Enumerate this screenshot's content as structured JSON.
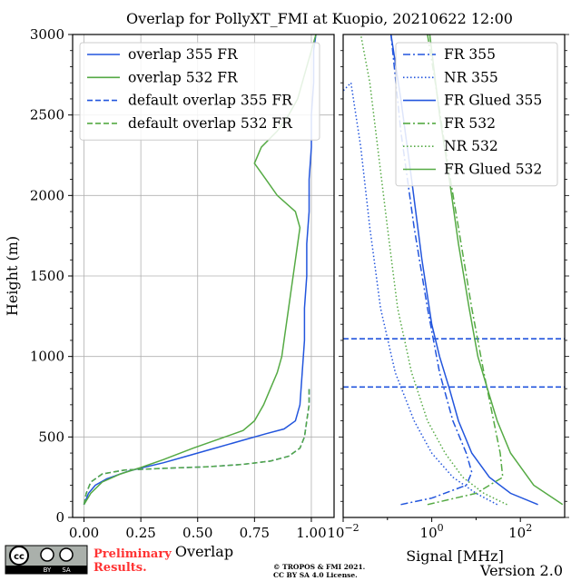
{
  "title": "Overlap for PollyXT_FMI at Kuopio, 20210622 12:00",
  "ylabel": "Height (m)",
  "footer": {
    "preliminary_line1": "Preliminary",
    "preliminary_line2": "Results.",
    "copyright_line1": "© TROPOS & FMI 2021.",
    "copyright_line2": "CC BY SA 4.0 License.",
    "version": "Version 2.0",
    "license_badge": "cc-by-sa-icon"
  },
  "colors": {
    "blue": "#2255dd",
    "green": "#55aa44",
    "grid": "#b0b0b0"
  },
  "chart_data": [
    {
      "type": "line",
      "xlabel": "Overlap",
      "ylabel": "Height (m)",
      "xlim": [
        -0.05,
        1.1
      ],
      "ylim": [
        0,
        3000
      ],
      "xticks": [
        "0.00",
        "0.25",
        "0.50",
        "0.75",
        "1.00"
      ],
      "yticks": [
        "0",
        "500",
        "1000",
        "1500",
        "2000",
        "2500",
        "3000"
      ],
      "grid": true,
      "legend": "top-left",
      "series": [
        {
          "name": "overlap 355 FR",
          "color": "blue",
          "style": "solid",
          "points": [
            [
              0.0,
              80
            ],
            [
              0.02,
              150
            ],
            [
              0.05,
              200
            ],
            [
              0.1,
              240
            ],
            [
              0.2,
              290
            ],
            [
              0.35,
              340
            ],
            [
              0.45,
              380
            ],
            [
              0.55,
              420
            ],
            [
              0.7,
              480
            ],
            [
              0.8,
              520
            ],
            [
              0.88,
              550
            ],
            [
              0.93,
              600
            ],
            [
              0.95,
              700
            ],
            [
              0.96,
              900
            ],
            [
              0.97,
              1100
            ],
            [
              0.97,
              1300
            ],
            [
              0.98,
              1500
            ],
            [
              0.98,
              1700
            ],
            [
              0.99,
              1900
            ],
            [
              0.99,
              2100
            ],
            [
              1.0,
              2300
            ],
            [
              1.0,
              2500
            ],
            [
              1.01,
              2700
            ],
            [
              1.01,
              2900
            ],
            [
              1.02,
              3000
            ]
          ]
        },
        {
          "name": "overlap 532 FR",
          "color": "green",
          "style": "solid",
          "points": [
            [
              0.0,
              80
            ],
            [
              0.03,
              150
            ],
            [
              0.08,
              220
            ],
            [
              0.16,
              270
            ],
            [
              0.25,
              310
            ],
            [
              0.35,
              360
            ],
            [
              0.48,
              430
            ],
            [
              0.6,
              490
            ],
            [
              0.7,
              540
            ],
            [
              0.75,
              600
            ],
            [
              0.79,
              700
            ],
            [
              0.82,
              800
            ],
            [
              0.85,
              900
            ],
            [
              0.87,
              1000
            ],
            [
              0.88,
              1100
            ],
            [
              0.89,
              1200
            ],
            [
              0.9,
              1300
            ],
            [
              0.91,
              1400
            ],
            [
              0.92,
              1500
            ],
            [
              0.93,
              1600
            ],
            [
              0.94,
              1700
            ],
            [
              0.95,
              1800
            ],
            [
              0.93,
              1900
            ],
            [
              0.85,
              2000
            ],
            [
              0.8,
              2100
            ],
            [
              0.75,
              2200
            ],
            [
              0.78,
              2300
            ],
            [
              0.85,
              2400
            ],
            [
              0.9,
              2500
            ],
            [
              0.94,
              2600
            ],
            [
              0.96,
              2700
            ],
            [
              0.98,
              2800
            ],
            [
              1.0,
              2900
            ],
            [
              1.02,
              3000
            ]
          ]
        },
        {
          "name": "default overlap 355 FR",
          "color": "blue",
          "style": "dashed",
          "points": [
            [
              0.0,
              80
            ],
            [
              0.01,
              150
            ],
            [
              0.03,
              220
            ],
            [
              0.08,
              270
            ],
            [
              0.18,
              295
            ],
            [
              0.35,
              305
            ],
            [
              0.55,
              315
            ],
            [
              0.7,
              330
            ],
            [
              0.82,
              350
            ],
            [
              0.9,
              380
            ],
            [
              0.95,
              430
            ],
            [
              0.97,
              500
            ],
            [
              0.98,
              600
            ],
            [
              0.99,
              700
            ],
            [
              0.99,
              800
            ]
          ]
        },
        {
          "name": "default overlap 532 FR",
          "color": "green",
          "style": "dashed",
          "points": [
            [
              0.0,
              80
            ],
            [
              0.01,
              150
            ],
            [
              0.03,
              220
            ],
            [
              0.08,
              270
            ],
            [
              0.18,
              295
            ],
            [
              0.35,
              305
            ],
            [
              0.55,
              315
            ],
            [
              0.7,
              330
            ],
            [
              0.82,
              350
            ],
            [
              0.9,
              380
            ],
            [
              0.95,
              430
            ],
            [
              0.97,
              500
            ],
            [
              0.98,
              600
            ],
            [
              0.99,
              700
            ],
            [
              0.99,
              800
            ]
          ]
        }
      ]
    },
    {
      "type": "line",
      "xlabel": "Signal [MHz]",
      "xscale": "log",
      "xlim": [
        0.01,
        1000
      ],
      "ylim": [
        0,
        3000
      ],
      "xticks": [
        "10^-2",
        "10^0",
        "10^2"
      ],
      "grid": false,
      "legend": "top-right",
      "hlines": [
        1110,
        810
      ],
      "series": [
        {
          "name": "FR 355",
          "color": "blue",
          "style": "dashdot",
          "points": [
            [
              0.2,
              80
            ],
            [
              1,
              120
            ],
            [
              6,
              200
            ],
            [
              8,
              280
            ],
            [
              6,
              400
            ],
            [
              3,
              600
            ],
            [
              1.5,
              900
            ],
            [
              0.8,
              1300
            ],
            [
              0.4,
              1800
            ],
            [
              0.2,
              2400
            ],
            [
              0.12,
              3000
            ]
          ]
        },
        {
          "name": "NR 355",
          "color": "blue",
          "style": "dotted",
          "points": [
            [
              30,
              80
            ],
            [
              10,
              150
            ],
            [
              3,
              250
            ],
            [
              1,
              400
            ],
            [
              0.4,
              600
            ],
            [
              0.15,
              900
            ],
            [
              0.07,
              1300
            ],
            [
              0.04,
              1800
            ],
            [
              0.025,
              2300
            ],
            [
              0.015,
              2700
            ],
            [
              0.01,
              2650
            ]
          ]
        },
        {
          "name": "FR Glued 355",
          "color": "blue",
          "style": "solid",
          "points": [
            [
              250,
              80
            ],
            [
              60,
              150
            ],
            [
              20,
              250
            ],
            [
              8,
              400
            ],
            [
              4,
              600
            ],
            [
              2.5,
              800
            ],
            [
              1.5,
              1000
            ],
            [
              1,
              1200
            ],
            [
              0.6,
              1600
            ],
            [
              0.35,
              2100
            ],
            [
              0.2,
              2600
            ],
            [
              0.12,
              3000
            ]
          ]
        },
        {
          "name": "FR 532",
          "color": "green",
          "style": "dashdot",
          "points": [
            [
              0.8,
              80
            ],
            [
              10,
              150
            ],
            [
              40,
              250
            ],
            [
              35,
              400
            ],
            [
              25,
              600
            ],
            [
              15,
              900
            ],
            [
              8,
              1300
            ],
            [
              4,
              1800
            ],
            [
              2,
              2300
            ],
            [
              1.2,
              2700
            ],
            [
              0.8,
              3000
            ]
          ]
        },
        {
          "name": "NR 532",
          "color": "green",
          "style": "dotted",
          "points": [
            [
              50,
              80
            ],
            [
              15,
              150
            ],
            [
              5,
              250
            ],
            [
              2,
              400
            ],
            [
              0.8,
              600
            ],
            [
              0.35,
              900
            ],
            [
              0.17,
              1300
            ],
            [
              0.1,
              1800
            ],
            [
              0.06,
              2300
            ],
            [
              0.04,
              2700
            ],
            [
              0.025,
              3000
            ]
          ]
        },
        {
          "name": "FR Glued 532",
          "color": "green",
          "style": "solid",
          "points": [
            [
              900,
              80
            ],
            [
              200,
              200
            ],
            [
              60,
              400
            ],
            [
              30,
              600
            ],
            [
              18,
              800
            ],
            [
              11,
              1000
            ],
            [
              7,
              1300
            ],
            [
              4,
              1700
            ],
            [
              2.5,
              2100
            ],
            [
              1.5,
              2500
            ],
            [
              0.9,
              3000
            ]
          ]
        }
      ]
    }
  ]
}
